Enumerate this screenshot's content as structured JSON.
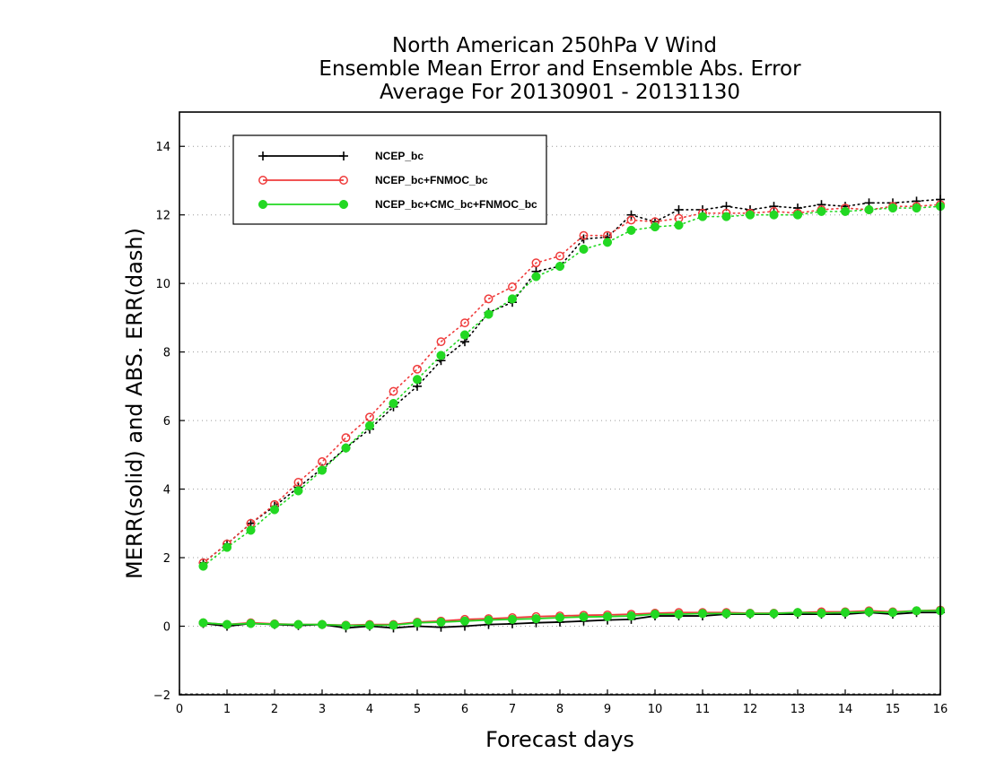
{
  "chart_data": {
    "type": "line",
    "title": [
      "North American 250hPa V Wind",
      "Ensemble Mean Error and Ensemble Abs. Error",
      "Average For 20130901 - 20131130"
    ],
    "xlabel": "Forecast days",
    "ylabel": "MERR(solid) and ABS. ERR(dash)",
    "xlim": [
      0,
      16
    ],
    "ylim": [
      -2,
      15
    ],
    "x_ticks": [
      0,
      1,
      2,
      3,
      4,
      5,
      6,
      7,
      8,
      9,
      10,
      11,
      12,
      13,
      14,
      15,
      16
    ],
    "y_ticks": [
      -2,
      0,
      2,
      4,
      6,
      8,
      10,
      12,
      14
    ],
    "grid": "horizontal dotted",
    "legend_position": "top-left",
    "x": [
      0.5,
      1,
      1.5,
      2,
      2.5,
      3,
      3.5,
      4,
      4.5,
      5,
      5.5,
      6,
      6.5,
      7,
      7.5,
      8,
      8.5,
      9,
      9.5,
      10,
      10.5,
      11,
      11.5,
      12,
      12.5,
      13,
      13.5,
      14,
      14.5,
      15,
      15.5,
      16
    ],
    "series": [
      {
        "name": "NCEP_bc",
        "color": "#000000",
        "marker": "plus",
        "merr": [
          0.08,
          0.0,
          0.08,
          0.05,
          0.02,
          0.05,
          -0.05,
          0.0,
          -0.05,
          0.0,
          -0.03,
          0.0,
          0.05,
          0.07,
          0.1,
          0.12,
          0.15,
          0.18,
          0.2,
          0.3,
          0.3,
          0.3,
          0.35,
          0.35,
          0.35,
          0.35,
          0.35,
          0.35,
          0.4,
          0.35,
          0.4,
          0.4
        ],
        "abs_err": [
          1.85,
          2.4,
          3.0,
          3.5,
          4.05,
          4.6,
          5.2,
          5.75,
          6.4,
          7.0,
          7.75,
          8.3,
          9.15,
          9.45,
          10.35,
          10.5,
          11.3,
          11.35,
          12.0,
          11.8,
          12.15,
          12.15,
          12.25,
          12.15,
          12.25,
          12.2,
          12.3,
          12.25,
          12.35,
          12.35,
          12.4,
          12.45
        ]
      },
      {
        "name": "NCEP_bc+FNMOC_bc",
        "color": "#ef3b3b",
        "marker": "open-circle",
        "merr": [
          0.1,
          0.05,
          0.1,
          0.07,
          0.05,
          0.05,
          0.03,
          0.05,
          0.05,
          0.12,
          0.15,
          0.2,
          0.22,
          0.25,
          0.28,
          0.3,
          0.32,
          0.33,
          0.35,
          0.38,
          0.4,
          0.4,
          0.4,
          0.38,
          0.38,
          0.4,
          0.42,
          0.42,
          0.45,
          0.42,
          0.45,
          0.47
        ],
        "abs_err": [
          1.85,
          2.4,
          3.0,
          3.55,
          4.2,
          4.8,
          5.5,
          6.1,
          6.85,
          7.5,
          8.3,
          8.85,
          9.55,
          9.9,
          10.6,
          10.8,
          11.4,
          11.4,
          11.85,
          11.8,
          11.9,
          12.05,
          12.05,
          12.05,
          12.1,
          12.05,
          12.15,
          12.2,
          12.15,
          12.25,
          12.25,
          12.3
        ]
      },
      {
        "name": "NCEP_bc+CMC_bc+FNMOC_bc",
        "color": "#22d822",
        "marker": "filled-circle",
        "merr": [
          0.1,
          0.05,
          0.08,
          0.06,
          0.05,
          0.05,
          0.02,
          0.03,
          0.03,
          0.1,
          0.12,
          0.15,
          0.18,
          0.2,
          0.22,
          0.25,
          0.27,
          0.28,
          0.3,
          0.35,
          0.35,
          0.37,
          0.37,
          0.37,
          0.37,
          0.4,
          0.38,
          0.4,
          0.42,
          0.4,
          0.45,
          0.45
        ],
        "abs_err": [
          1.75,
          2.3,
          2.8,
          3.4,
          3.95,
          4.55,
          5.2,
          5.85,
          6.5,
          7.2,
          7.9,
          8.5,
          9.1,
          9.55,
          10.2,
          10.5,
          11.0,
          11.2,
          11.55,
          11.65,
          11.7,
          11.95,
          11.95,
          12.0,
          12.0,
          12.0,
          12.1,
          12.1,
          12.15,
          12.2,
          12.2,
          12.25
        ]
      }
    ]
  }
}
